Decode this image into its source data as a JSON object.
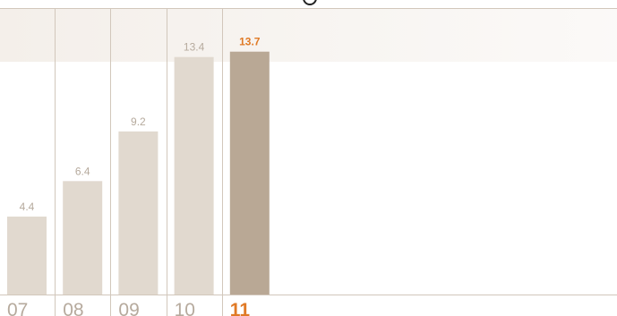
{
  "chart_data": {
    "type": "bar",
    "categories": [
      "07",
      "08",
      "09",
      "10",
      "11"
    ],
    "values": [
      4.4,
      6.4,
      9.2,
      13.4,
      13.7
    ],
    "value_labels": [
      "4.4",
      "6.4",
      "9.2",
      "13.4",
      "13.7"
    ],
    "highlight_index": 4,
    "title": "",
    "xlabel": "",
    "ylabel": "",
    "ylim": [
      0,
      14.8
    ],
    "grid": false,
    "legend": "none"
  },
  "colors": {
    "bar": "#e1d9cf",
    "bar_highlight": "#b9a895",
    "label": "#b6aa9d",
    "label_highlight": "#e07a26",
    "separator": "#d2c7bb",
    "top_band": "#f4efea"
  }
}
